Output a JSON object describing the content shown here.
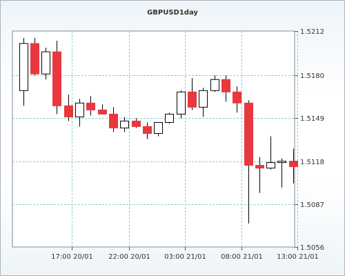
{
  "chart_data": {
    "type": "candlestick",
    "title": "GBPUSD1day",
    "xlabel": "",
    "ylabel": "",
    "y_axis_position": "right",
    "ylim": [
      1.5056,
      1.5212
    ],
    "yticks": [
      "1.5212",
      "1.5180",
      "1.5149",
      "1.5118",
      "1.5087",
      "1.5056"
    ],
    "yticks_values": [
      1.5212,
      1.518,
      1.5149,
      1.5118,
      1.5087,
      1.5056
    ],
    "xticks": [
      "17:00 20/01",
      "22:00 20/01",
      "03:00 21/01",
      "08:00 21/01",
      "13:00 21/01"
    ],
    "xticks_index": [
      4.3,
      9.4,
      14.4,
      19.4,
      24.4
    ],
    "grid": true,
    "up_color": "#ffffff",
    "down_color": "#e8383d",
    "candles": [
      {
        "o": 1.5169,
        "h": 1.5207,
        "l": 1.5158,
        "c": 1.5203
      },
      {
        "o": 1.5203,
        "h": 1.5207,
        "l": 1.518,
        "c": 1.5181
      },
      {
        "o": 1.5181,
        "h": 1.52,
        "l": 1.5177,
        "c": 1.5197
      },
      {
        "o": 1.5197,
        "h": 1.5205,
        "l": 1.5152,
        "c": 1.5158
      },
      {
        "o": 1.5158,
        "h": 1.5166,
        "l": 1.5147,
        "c": 1.515
      },
      {
        "o": 1.515,
        "h": 1.5163,
        "l": 1.5143,
        "c": 1.516
      },
      {
        "o": 1.516,
        "h": 1.5165,
        "l": 1.5151,
        "c": 1.5155
      },
      {
        "o": 1.5155,
        "h": 1.5159,
        "l": 1.5152,
        "c": 1.5152
      },
      {
        "o": 1.5152,
        "h": 1.5157,
        "l": 1.5139,
        "c": 1.5142
      },
      {
        "o": 1.5142,
        "h": 1.515,
        "l": 1.5139,
        "c": 1.5147
      },
      {
        "o": 1.5147,
        "h": 1.5149,
        "l": 1.5142,
        "c": 1.5143
      },
      {
        "o": 1.5143,
        "h": 1.5146,
        "l": 1.5134,
        "c": 1.5138
      },
      {
        "o": 1.5138,
        "h": 1.5146,
        "l": 1.5136,
        "c": 1.5146
      },
      {
        "o": 1.5146,
        "h": 1.5153,
        "l": 1.5145,
        "c": 1.5152
      },
      {
        "o": 1.5152,
        "h": 1.5169,
        "l": 1.5149,
        "c": 1.5168
      },
      {
        "o": 1.5168,
        "h": 1.5178,
        "l": 1.5155,
        "c": 1.5157
      },
      {
        "o": 1.5157,
        "h": 1.5171,
        "l": 1.515,
        "c": 1.5169
      },
      {
        "o": 1.5169,
        "h": 1.518,
        "l": 1.5168,
        "c": 1.5177
      },
      {
        "o": 1.5177,
        "h": 1.518,
        "l": 1.5161,
        "c": 1.5168
      },
      {
        "o": 1.5168,
        "h": 1.5172,
        "l": 1.5153,
        "c": 1.516
      },
      {
        "o": 1.516,
        "h": 1.5162,
        "l": 1.5073,
        "c": 1.5115
      },
      {
        "o": 1.5115,
        "h": 1.5121,
        "l": 1.5095,
        "c": 1.5113
      },
      {
        "o": 1.5113,
        "h": 1.5136,
        "l": 1.5112,
        "c": 1.5117
      },
      {
        "o": 1.5117,
        "h": 1.512,
        "l": 1.5099,
        "c": 1.5118
      },
      {
        "o": 1.5118,
        "h": 1.5127,
        "l": 1.5102,
        "c": 1.5114
      }
    ]
  }
}
